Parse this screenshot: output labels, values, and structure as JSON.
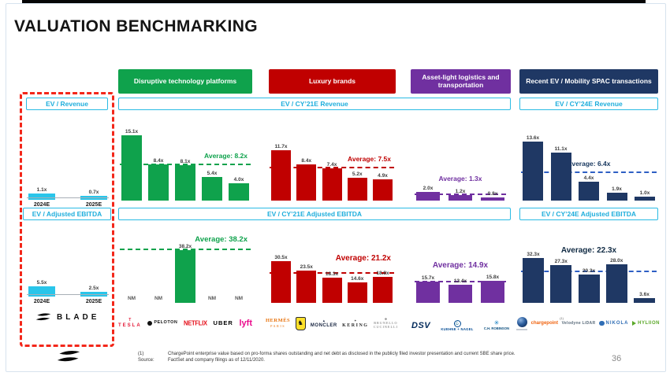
{
  "slide": {
    "title": "VALUATION BENCHMARKING",
    "page_number": "36",
    "footnote_marker": "(1)",
    "footnote_text": "ChargePoint enterprise value based on pro-forma shares outstanding and net debt as disclosed in the publicly filed investor presentation and current SBE share price.",
    "source_label": "Source:",
    "source_text": "FactSet and company filings as of 12/11/2020."
  },
  "colors": {
    "tech_green": "#0FA24C",
    "luxury_red": "#C00000",
    "logistics_purple": "#7030A0",
    "spac_navy": "#1F3864",
    "spac_dash_blue": "#2E5FC4",
    "cyan_accent": "#2ABBE4",
    "blade_bar_cyan": "#29C5EA"
  },
  "blade": {
    "revenue_header": "EV / Revenue",
    "ebitda_header": "EV / Adjusted EBITDA",
    "brand": "BLADE"
  },
  "section_labels": {
    "cy21_revenue": "EV / CY’21E Revenue",
    "cy24_revenue": "EV / CY’24E Revenue",
    "cy21_ebitda": "EV / CY’21E Adjusted EBITDA",
    "cy24_ebitda": "EV / CY’24E Adjusted EBITDA"
  },
  "groups": {
    "tech": {
      "header": "Disruptive technology platforms"
    },
    "luxury": {
      "header": "Luxury brands"
    },
    "logistics": {
      "header": "Asset-light logistics and transportation"
    },
    "spac": {
      "header": "Recent EV / Mobility SPAC transactions"
    }
  },
  "logos": {
    "tesla": {
      "tmark": "T",
      "word": "TESLA"
    },
    "peloton": {
      "word": "PELOTON"
    },
    "netflix": {
      "word": "NETFLIX"
    },
    "uber": {
      "word": "UBER"
    },
    "lyft": {
      "word": "lyft"
    },
    "hermes": {
      "word": "HERMÈS",
      "sub": "PARIS"
    },
    "ferrari": {
      "glyph": "♞"
    },
    "moncler": {
      "crest": "▲",
      "word": "MONCLER"
    },
    "kering": {
      "crest": "✦",
      "word": "KERING"
    },
    "brunello": {
      "crest": "✠",
      "line1": "BRUNELLO",
      "line2": "CUCINELLI"
    },
    "dsv": {
      "word": "DSV"
    },
    "kuehne": {
      "glyph": "⚓",
      "word": "KUEHNE + NAGEL"
    },
    "chrobinson": {
      "mark": "✳",
      "word": "C.H. ROBINSON"
    },
    "chargepoint": {
      "word": "chargepoint",
      "sup": "(1)"
    },
    "velodyne": {
      "word": "Velodyne LiDAR"
    },
    "nikola": {
      "word": "NIKOLA"
    },
    "hyliion": {
      "word": "HYLIION"
    }
  },
  "chart_data": [
    {
      "id": "blade_ev_revenue",
      "type": "bar",
      "title": "EV / Revenue",
      "company": "BLADE",
      "categories": [
        "2024E",
        "2025E"
      ],
      "values": [
        1.1,
        0.7
      ],
      "labels": [
        "1.1x",
        "0.7x"
      ],
      "unit": "x"
    },
    {
      "id": "blade_ev_ebitda",
      "type": "bar",
      "title": "EV / Adjusted EBITDA",
      "company": "BLADE",
      "categories": [
        "2024E",
        "2025E"
      ],
      "values": [
        5.5,
        2.5
      ],
      "labels": [
        "5.5x",
        "2.5x"
      ],
      "unit": "x"
    },
    {
      "id": "tech_revenue",
      "type": "bar",
      "group": "Disruptive technology platforms",
      "title": "EV / CY’21E Revenue",
      "categories": [
        "Tesla",
        "Peloton",
        "Netflix",
        "Uber",
        "Lyft"
      ],
      "values": [
        15.1,
        8.4,
        8.1,
        5.4,
        4.0
      ],
      "labels": [
        "15.1x",
        "8.4x",
        "8.1x",
        "5.4x",
        "4.0x"
      ],
      "average": 8.2,
      "average_label": "Average: 8.2x",
      "unit": "x"
    },
    {
      "id": "tech_ebitda",
      "type": "bar",
      "group": "Disruptive technology platforms",
      "title": "EV / CY’21E Adjusted EBITDA",
      "categories": [
        "Tesla",
        "Peloton",
        "Netflix",
        "Uber",
        "Lyft"
      ],
      "values": [
        null,
        null,
        38.2,
        null,
        null
      ],
      "labels": [
        "NM",
        "NM",
        "38.2x",
        "NM",
        "NM"
      ],
      "average": 38.2,
      "average_label": "Average: 38.2x",
      "unit": "x"
    },
    {
      "id": "luxury_revenue",
      "type": "bar",
      "group": "Luxury brands",
      "title": "EV / CY’21E Revenue",
      "categories": [
        "Hermès",
        "Ferrari",
        "Moncler",
        "Kering",
        "Brunello Cucinelli"
      ],
      "values": [
        11.7,
        8.4,
        7.4,
        5.2,
        4.9
      ],
      "labels": [
        "11.7x",
        "8.4x",
        "7.4x",
        "5.2x",
        "4.9x"
      ],
      "average": 7.5,
      "average_label": "Average: 7.5x",
      "unit": "x"
    },
    {
      "id": "luxury_ebitda",
      "type": "bar",
      "group": "Luxury brands",
      "title": "EV / CY’21E Adjusted EBITDA",
      "categories": [
        "Hermès",
        "Ferrari",
        "Moncler",
        "Kering",
        "Brunello Cucinelli"
      ],
      "values": [
        30.5,
        23.5,
        18.3,
        14.6,
        18.8
      ],
      "labels": [
        "30.5x",
        "23.5x",
        "18.3x",
        "14.6x",
        "18.8x"
      ],
      "average": 21.2,
      "average_label": "Average: 21.2x",
      "unit": "x"
    },
    {
      "id": "logistics_revenue",
      "type": "bar",
      "group": "Asset-light logistics and transportation",
      "title": "EV / CY’21E Revenue",
      "categories": [
        "DSV",
        "Kuehne + Nagel",
        "C.H. Robinson"
      ],
      "values": [
        2.0,
        1.2,
        0.8
      ],
      "labels": [
        "2.0x",
        "1.2x",
        "0.8x"
      ],
      "average": 1.3,
      "average_label": "Average: 1.3x",
      "unit": "x"
    },
    {
      "id": "logistics_ebitda",
      "type": "bar",
      "group": "Asset-light logistics and transportation",
      "title": "EV / CY’21E Adjusted EBITDA",
      "categories": [
        "DSV",
        "Kuehne + Nagel",
        "C.H. Robinson"
      ],
      "values": [
        15.7,
        13.4,
        15.8
      ],
      "labels": [
        "15.7x",
        "13.4x",
        "15.8x"
      ],
      "average": 14.9,
      "average_label": "Average: 14.9x",
      "unit": "x"
    },
    {
      "id": "spac_revenue",
      "type": "bar",
      "group": "Recent EV / Mobility SPAC transactions",
      "title": "EV / CY’24E Revenue",
      "categories": [
        "(globe logo)",
        "ChargePoint",
        "Velodyne LiDAR",
        "Nikola",
        "Hyliion"
      ],
      "values": [
        13.6,
        11.1,
        4.4,
        1.9,
        1.0
      ],
      "labels": [
        "13.6x",
        "11.1x",
        "4.4x",
        "1.9x",
        "1.0x"
      ],
      "average": 6.4,
      "average_label": "Average: 6.4x",
      "unit": "x"
    },
    {
      "id": "spac_ebitda",
      "type": "bar",
      "group": "Recent EV / Mobility SPAC transactions",
      "title": "EV / CY’24E Adjusted EBITDA",
      "categories": [
        "(globe logo)",
        "ChargePoint",
        "Velodyne LiDAR",
        "Nikola",
        "Hyliion"
      ],
      "values": [
        32.3,
        27.3,
        20.3,
        28.0,
        3.6
      ],
      "labels": [
        "32.3x",
        "27.3x",
        "20.3x",
        "28.0x",
        "3.6x"
      ],
      "average": 22.3,
      "average_label": "Average: 22.3x",
      "unit": "x"
    }
  ]
}
